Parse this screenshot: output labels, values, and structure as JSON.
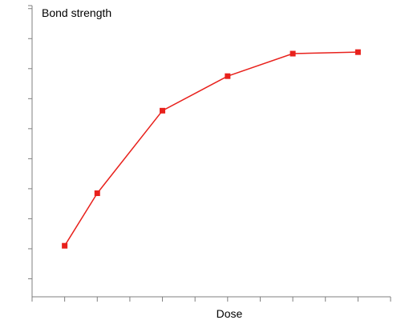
{
  "chart_data": {
    "type": "line",
    "title": "",
    "xlabel": "Dose",
    "ylabel": "Bond strength",
    "x": [
      1,
      2,
      4,
      6,
      8,
      10
    ],
    "series": [
      {
        "values": [
          1.1,
          2.85,
          5.6,
          6.75,
          7.5,
          7.55
        ]
      }
    ],
    "xlim": [
      0,
      11
    ],
    "ylim": [
      -0.6,
      9.1
    ],
    "x_ticks": [
      0,
      1,
      2,
      3,
      4,
      5,
      6,
      7,
      8,
      9,
      10,
      11
    ],
    "y_ticks": [
      0,
      1,
      2,
      3,
      4,
      5,
      6,
      7,
      8,
      9
    ],
    "tick_labels_shown": false,
    "grid": false,
    "legend": "none",
    "colors": {
      "series": "#e8211c",
      "axis": "#7f7f7f"
    }
  }
}
